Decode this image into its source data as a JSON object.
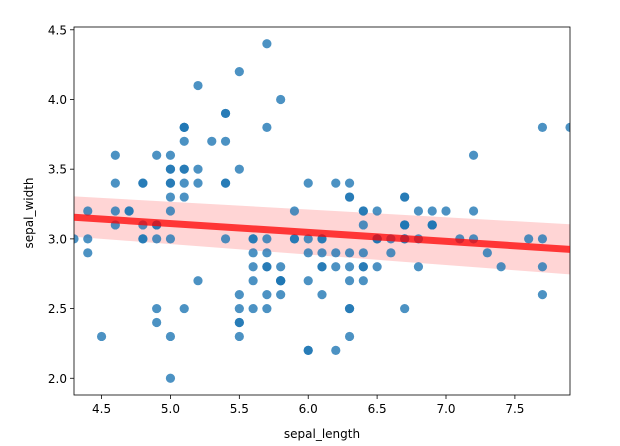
{
  "chart_data": {
    "type": "scatter",
    "xlabel": "sepal_length",
    "ylabel": "sepal_width",
    "xlim": [
      4.3,
      7.9
    ],
    "ylim": [
      1.88,
      4.52
    ],
    "xticks": [
      4.5,
      5.0,
      5.5,
      6.0,
      6.5,
      7.0,
      7.5
    ],
    "xtick_labels": [
      "4.5",
      "5.0",
      "5.5",
      "6.0",
      "6.5",
      "7.0",
      "7.5"
    ],
    "yticks": [
      2.0,
      2.5,
      3.0,
      3.5,
      4.0,
      4.5
    ],
    "ytick_labels": [
      "2.0",
      "2.5",
      "3.0",
      "3.5",
      "4.0",
      "4.5"
    ],
    "grid": false,
    "point_color": "#1f77b4",
    "line_color": "#ff0000",
    "band_color": "#ffb3b3",
    "points": {
      "x": [
        5.1,
        4.9,
        4.7,
        4.6,
        5.0,
        5.4,
        4.6,
        5.0,
        4.4,
        4.9,
        5.4,
        4.8,
        4.8,
        4.3,
        5.8,
        5.7,
        5.4,
        5.1,
        5.7,
        5.1,
        5.4,
        5.1,
        4.6,
        5.1,
        4.8,
        5.0,
        5.0,
        5.2,
        5.2,
        4.7,
        4.8,
        5.4,
        5.2,
        5.5,
        4.9,
        5.0,
        5.5,
        4.9,
        4.4,
        5.1,
        5.0,
        4.5,
        4.4,
        5.0,
        5.1,
        4.8,
        5.1,
        4.6,
        5.3,
        5.0,
        7.0,
        6.4,
        6.9,
        5.5,
        6.5,
        5.7,
        6.3,
        4.9,
        6.6,
        5.2,
        5.0,
        5.9,
        6.0,
        6.1,
        5.6,
        6.7,
        5.6,
        5.8,
        6.2,
        5.6,
        5.9,
        6.1,
        6.3,
        6.1,
        6.4,
        6.6,
        6.8,
        6.7,
        6.0,
        5.7,
        5.5,
        5.5,
        5.8,
        6.0,
        5.4,
        6.0,
        6.7,
        6.3,
        5.6,
        5.5,
        5.5,
        6.1,
        5.8,
        5.0,
        5.6,
        5.7,
        5.7,
        6.2,
        5.1,
        5.7,
        6.3,
        5.8,
        7.1,
        6.3,
        6.5,
        7.6,
        4.9,
        7.3,
        6.7,
        7.2,
        6.5,
        6.4,
        6.8,
        5.7,
        5.8,
        6.4,
        6.5,
        7.7,
        7.7,
        6.0,
        6.9,
        5.6,
        7.7,
        6.3,
        6.7,
        7.2,
        6.2,
        6.1,
        6.4,
        7.2,
        7.4,
        7.9,
        6.4,
        6.3,
        6.1,
        7.7,
        6.3,
        6.4,
        6.0,
        6.9,
        6.7,
        6.9,
        5.8,
        6.8,
        6.7,
        6.7,
        6.3,
        6.5,
        6.2,
        5.9
      ],
      "y": [
        3.5,
        3.0,
        3.2,
        3.1,
        3.6,
        3.9,
        3.4,
        3.4,
        2.9,
        3.1,
        3.7,
        3.4,
        3.0,
        3.0,
        4.0,
        4.4,
        3.9,
        3.5,
        3.8,
        3.8,
        3.4,
        3.7,
        3.6,
        3.3,
        3.4,
        3.0,
        3.4,
        3.5,
        3.4,
        3.2,
        3.1,
        3.4,
        4.1,
        4.2,
        3.1,
        3.2,
        3.5,
        3.6,
        3.0,
        3.4,
        3.5,
        2.3,
        3.2,
        3.5,
        3.8,
        3.0,
        3.8,
        3.2,
        3.7,
        3.3,
        3.2,
        3.2,
        3.1,
        2.3,
        2.8,
        2.8,
        3.3,
        2.4,
        2.9,
        2.7,
        2.0,
        3.0,
        2.2,
        2.9,
        2.9,
        3.1,
        3.0,
        2.7,
        2.2,
        2.5,
        3.2,
        2.8,
        2.5,
        2.8,
        2.9,
        3.0,
        2.8,
        3.0,
        2.9,
        2.6,
        2.4,
        2.4,
        2.7,
        2.7,
        3.0,
        3.4,
        3.1,
        2.3,
        3.0,
        2.5,
        2.6,
        3.0,
        2.6,
        2.3,
        2.7,
        3.0,
        2.9,
        2.9,
        2.5,
        2.8,
        3.3,
        2.7,
        3.0,
        2.9,
        3.0,
        3.0,
        2.5,
        2.9,
        2.5,
        3.6,
        3.2,
        2.7,
        3.0,
        2.5,
        2.8,
        3.2,
        3.0,
        3.8,
        2.6,
        2.2,
        3.2,
        2.8,
        2.8,
        2.7,
        3.3,
        3.2,
        2.8,
        3.0,
        2.8,
        3.0,
        2.8,
        3.8,
        2.8,
        2.8,
        2.6,
        3.0,
        3.4,
        3.1,
        3.0,
        3.1,
        3.1,
        3.1,
        2.7,
        3.2,
        3.3,
        3.0,
        2.5,
        3.0,
        3.4,
        3.0
      ]
    },
    "regression": {
      "x": [
        4.3,
        7.9
      ],
      "y": [
        3.155,
        2.925
      ],
      "ci_lower": [
        3.015,
        2.745
      ],
      "ci_upper": [
        3.305,
        3.105
      ]
    }
  }
}
